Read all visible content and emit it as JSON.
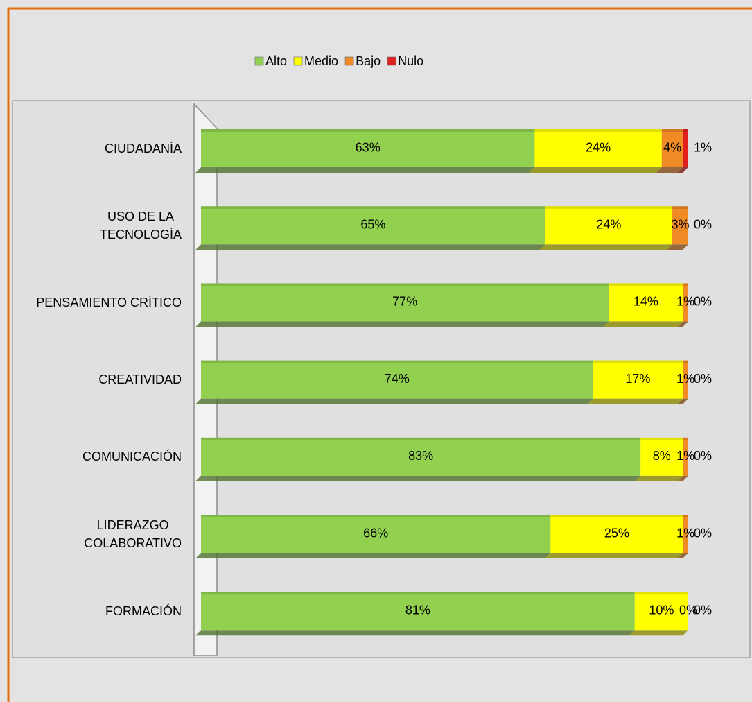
{
  "chart_data": {
    "type": "bar",
    "orientation": "horizontal",
    "stacked": "percent",
    "categories": [
      "CIUDADANÍA",
      "USO DE LA\nTECNOLOGÍA",
      "PENSAMIENTO CRÍTICO",
      "CREATIVIDAD",
      "COMUNICACIÓN",
      "LIDERAZGO\nCOLABORATIVO",
      "FORMACIÓN"
    ],
    "series": [
      {
        "name": "Alto",
        "color": "#92d050",
        "values": [
          63,
          65,
          77,
          74,
          83,
          66,
          81
        ],
        "value_labels": [
          "63%",
          "65%",
          "77%",
          "74%",
          "83%",
          "66%",
          "81%"
        ]
      },
      {
        "name": "Medio",
        "color": "#ffff00",
        "values": [
          24,
          24,
          14,
          17,
          8,
          25,
          10
        ],
        "value_labels": [
          "24%",
          "24%",
          "14%",
          "17%",
          "8%",
          "25%",
          "10%"
        ]
      },
      {
        "name": "Bajo",
        "color": "#f08a24",
        "values": [
          4,
          3,
          1,
          1,
          1,
          1,
          0
        ],
        "value_labels": [
          "4%",
          "3%",
          "1%",
          "1%",
          "1%",
          "1%",
          "0%"
        ]
      },
      {
        "name": "Nulo",
        "color": "#e0201c",
        "values": [
          1,
          0,
          0,
          0,
          0,
          0,
          0
        ],
        "value_labels": [
          "1%",
          "0%",
          "0%",
          "0%",
          "0%",
          "0%",
          "0%"
        ]
      }
    ],
    "legend": "top"
  }
}
